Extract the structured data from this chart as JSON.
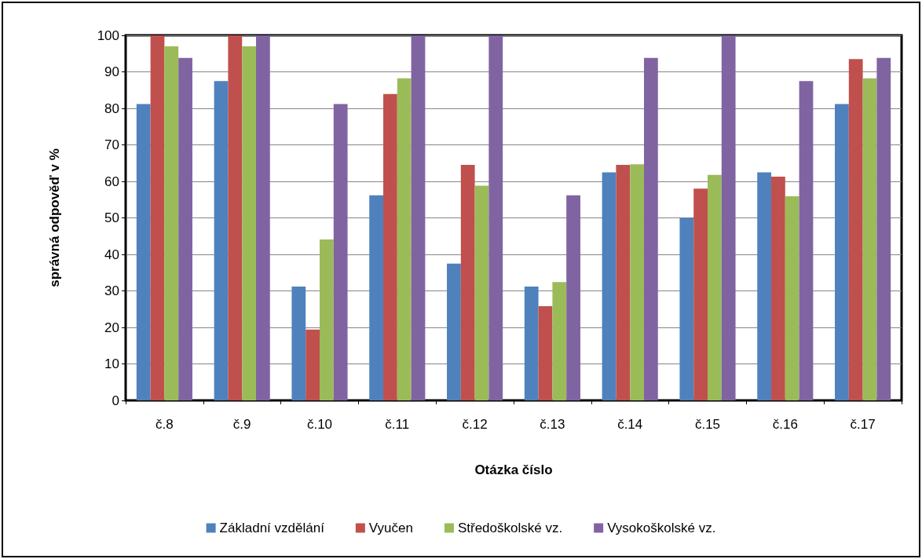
{
  "chart_data": {
    "type": "bar",
    "xlabel": "Otázka číslo",
    "ylabel": "správná odpověď v %",
    "categories": [
      "č.8",
      "č.9",
      "č.10",
      "č.11",
      "č.12",
      "č.13",
      "č.14",
      "č.15",
      "č.16",
      "č.17"
    ],
    "series": [
      {
        "name": "Základní vzdělání",
        "color": "#4f81bd",
        "values": [
          81.2,
          87.5,
          31.2,
          56.2,
          37.5,
          31.2,
          62.5,
          50,
          62.5,
          81.2
        ]
      },
      {
        "name": "Vyučen",
        "color": "#c0504d",
        "values": [
          100,
          100,
          19.4,
          83.9,
          64.5,
          25.8,
          64.5,
          58,
          61.3,
          93.5
        ]
      },
      {
        "name": "Středoškolské vz.",
        "color": "#9bbb59",
        "values": [
          97,
          97,
          44.1,
          88.2,
          58.8,
          32.4,
          64.7,
          61.8,
          55.9,
          88.2
        ]
      },
      {
        "name": "Vysokoškolské vz.",
        "color": "#8064a2",
        "values": [
          93.8,
          100,
          81.2,
          100,
          100,
          56.2,
          93.8,
          100,
          87.5,
          93.8
        ]
      }
    ],
    "ylim": [
      0,
      100
    ],
    "yticks": [
      0,
      10,
      20,
      30,
      40,
      50,
      60,
      70,
      80,
      90,
      100
    ],
    "grid": "y",
    "legend": "bottom"
  }
}
